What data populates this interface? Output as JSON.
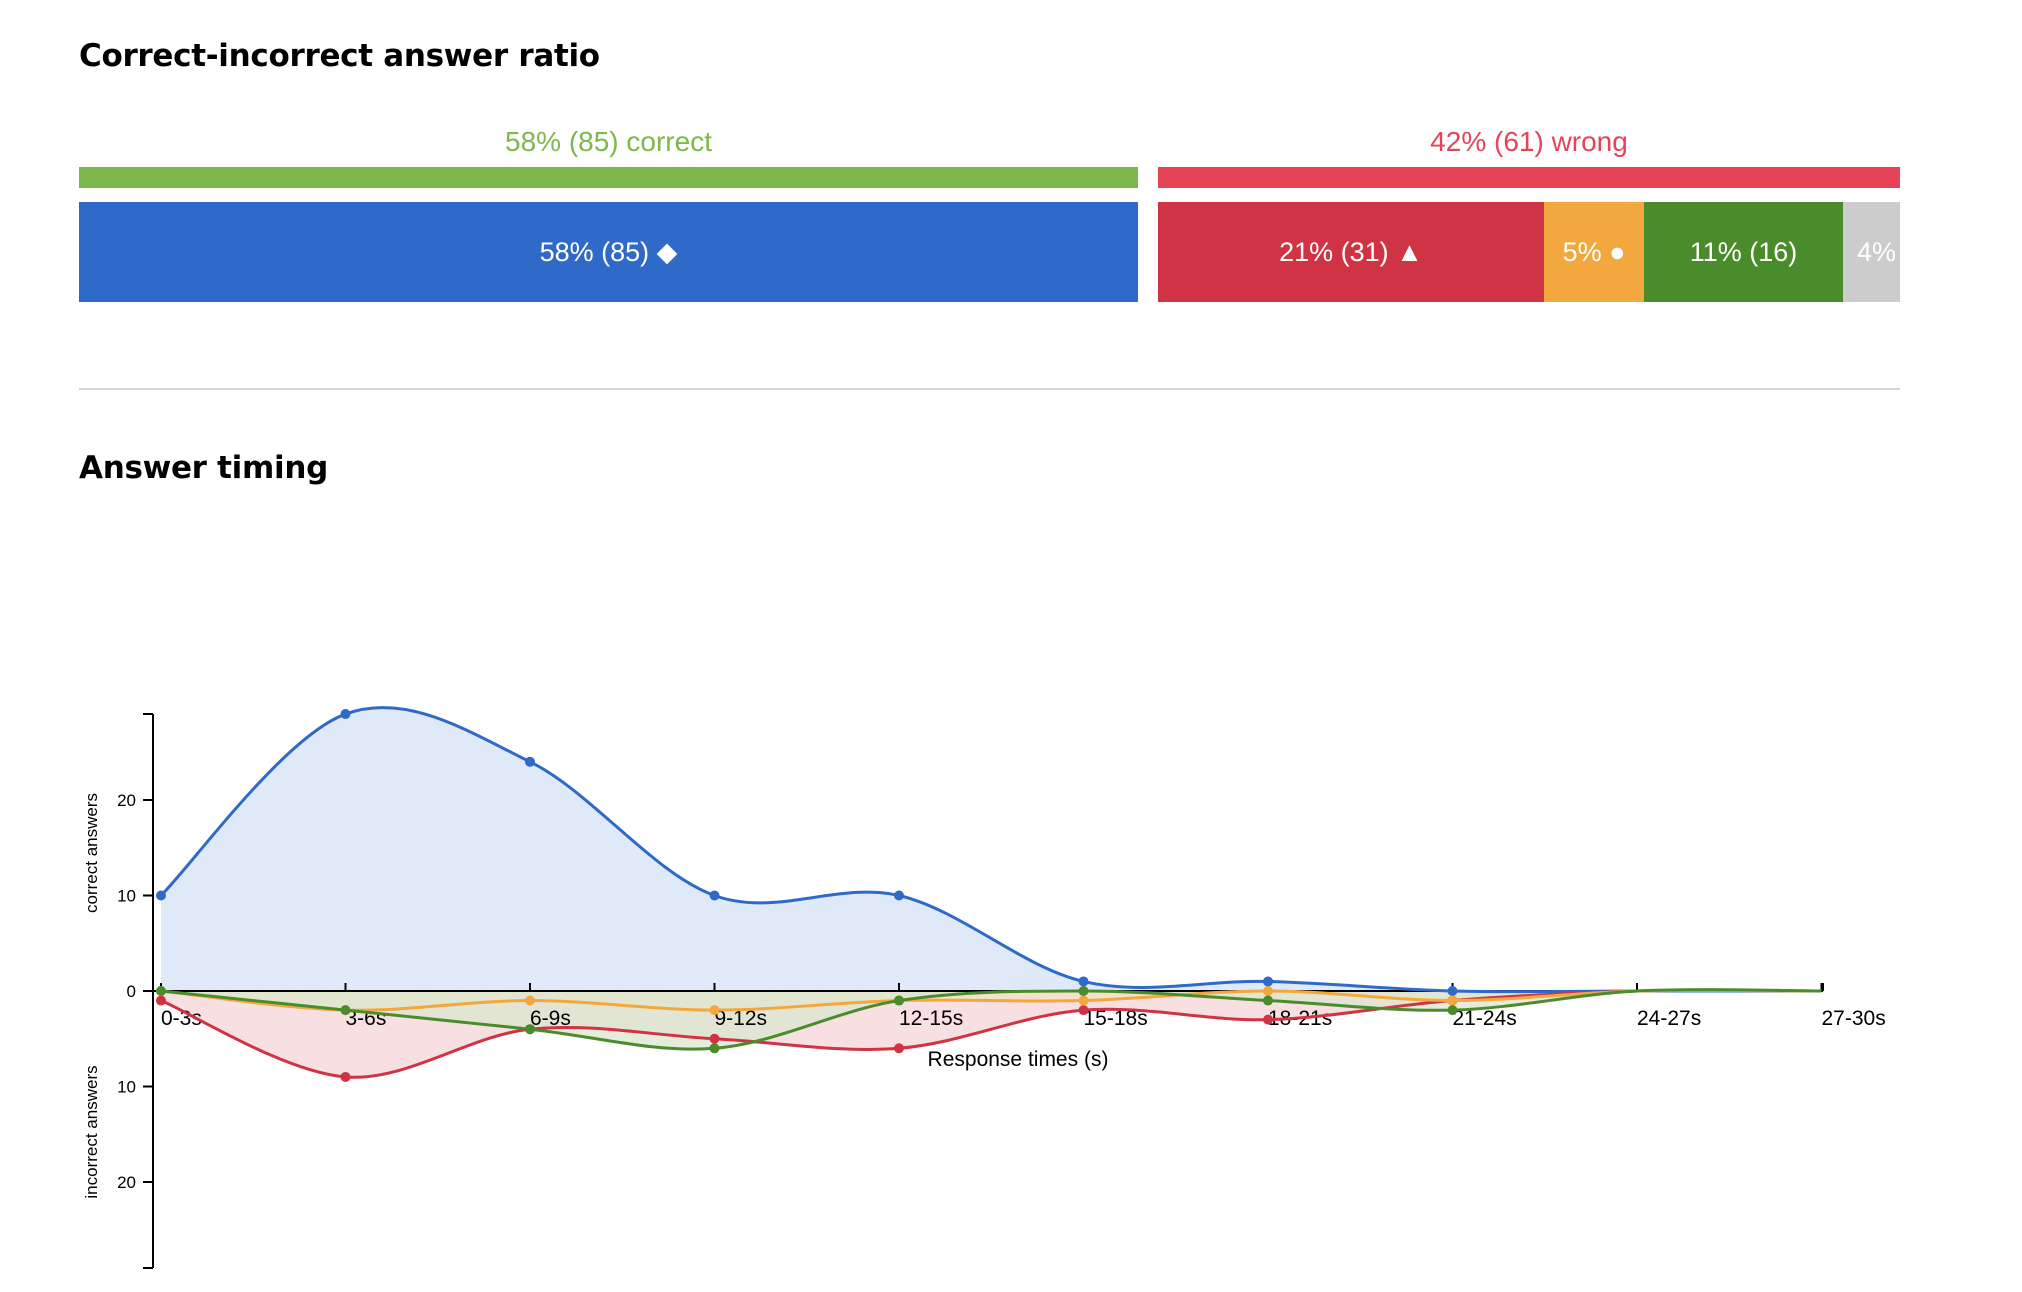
{
  "ratio": {
    "title": "Correct-incorrect answer ratio",
    "correct_label": "58% (85) correct",
    "wrong_label": "42% (61) wrong",
    "colors": {
      "correct": "#7cb84b",
      "wrong": "#e64456"
    },
    "segments": [
      {
        "label": "58% (85) ◆",
        "color": "#2f6ac8"
      },
      {
        "label": "21% (31) ▲",
        "color": "#d03343"
      },
      {
        "label": "5% ●",
        "color": "#f2a83e"
      },
      {
        "label": "11% (16)",
        "color": "#4a8c2c"
      },
      {
        "label": "4%",
        "color": "#cccccc"
      }
    ]
  },
  "timing": {
    "title": "Answer timing"
  },
  "chart_data": {
    "type": "area",
    "x": [
      "0-3s",
      "3-6s",
      "6-9s",
      "9-12s",
      "12-15s",
      "15-18s",
      "18-21s",
      "21-24s",
      "24-27s",
      "27-30s"
    ],
    "xlabel": "Response times (s)",
    "ylabel_top": "correct answers",
    "ylabel_bottom": "incorrect answers",
    "y_ticks_top": [
      0,
      10,
      20
    ],
    "y_ticks_bottom": [
      10,
      20
    ],
    "ylim_top": [
      0,
      29
    ],
    "ylim_bottom": [
      0,
      29
    ],
    "grid": false,
    "series": [
      {
        "side": "top",
        "color": "#2f6ac8",
        "fill": "#d5e1f4",
        "values": [
          10,
          29,
          24,
          10,
          10,
          1,
          1,
          0,
          0,
          0
        ]
      },
      {
        "side": "bottom",
        "color": "#d03343",
        "fill": "#f6d4d8",
        "values": [
          1,
          9,
          4,
          5,
          6,
          2,
          3,
          1,
          0,
          0
        ]
      },
      {
        "side": "bottom",
        "color": "#f2a83e",
        "fill": "#f6e2c2",
        "values": [
          0,
          2,
          1,
          2,
          1,
          1,
          0,
          1,
          0,
          0
        ]
      },
      {
        "side": "bottom",
        "color": "#4a8c2c",
        "fill": "#dbe7cf",
        "values": [
          0,
          2,
          4,
          6,
          1,
          0,
          1,
          2,
          0,
          0
        ]
      }
    ]
  }
}
